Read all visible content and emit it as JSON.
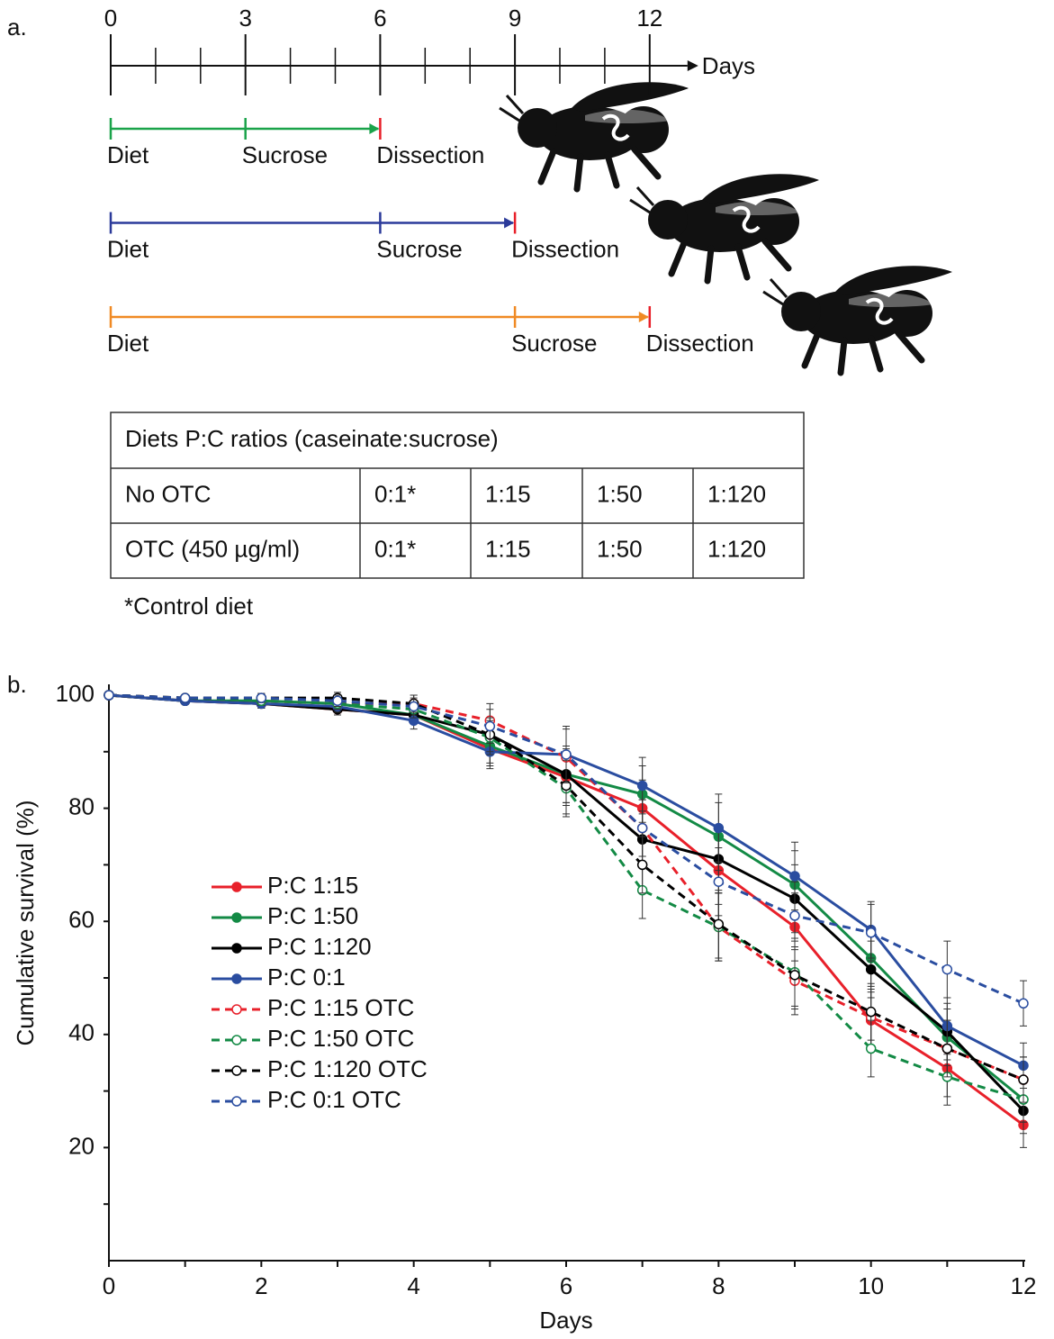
{
  "panel_a": {
    "label": "a.",
    "timeline": {
      "labeled_ticks": [
        0,
        3,
        6,
        9,
        12
      ],
      "minor_ticks": [
        1,
        2,
        4,
        5,
        7,
        8,
        10,
        11
      ],
      "axis_label": "Days",
      "rows": [
        {
          "color": "#1aa34a",
          "events": [
            {
              "day": 0,
              "label": "Diet"
            },
            {
              "day": 3,
              "label": "Sucrose"
            },
            {
              "day": 6,
              "label": "Dissection"
            }
          ]
        },
        {
          "color": "#2b3a9a",
          "events": [
            {
              "day": 0,
              "label": "Diet"
            },
            {
              "day": 6,
              "label": "Sucrose"
            },
            {
              "day": 9,
              "label": "Dissection"
            }
          ]
        },
        {
          "color": "#f08a24",
          "events": [
            {
              "day": 0,
              "label": "Diet"
            },
            {
              "day": 9,
              "label": "Sucrose"
            },
            {
              "day": 12,
              "label": "Dissection"
            }
          ]
        }
      ],
      "end_color": "#e8202a"
    },
    "table": {
      "header": "Diets P:C ratios (caseinate:sucrose)",
      "rows": [
        [
          "No OTC",
          "0:1*",
          "1:15",
          "1:50",
          "1:120"
        ],
        [
          "OTC (450 µg/ml)",
          "0:1*",
          "1:15",
          "1:50",
          "1:120"
        ]
      ],
      "footnote": "*Control diet"
    }
  },
  "panel_b_label": "b.",
  "chart_data": {
    "type": "line",
    "x_label": "Days",
    "y_label": "Cumulative survival (%)",
    "x": [
      0,
      1,
      2,
      3,
      4,
      5,
      6,
      7,
      8,
      9,
      10,
      11,
      12
    ],
    "xlim": [
      0,
      12
    ],
    "xticks": [
      0,
      2,
      4,
      6,
      8,
      10,
      12
    ],
    "x_minor_ticks": [
      1,
      3,
      5,
      7,
      9,
      11
    ],
    "ylim": [
      0,
      100
    ],
    "yticks": [
      20,
      40,
      60,
      80,
      100
    ],
    "y_minor_ticks": [
      10,
      30,
      50,
      70,
      90
    ],
    "legend_position": "left",
    "series": [
      {
        "name": "P:C 1:15",
        "color": "#e8202a",
        "dashed": false,
        "marker": "filled",
        "values": [
          100,
          99,
          98.5,
          97.5,
          96.5,
          90.5,
          85.5,
          80,
          69,
          59,
          42.5,
          34,
          24
        ],
        "errors": [
          0,
          0.5,
          0.8,
          1,
          1.5,
          3,
          5,
          5,
          6,
          6,
          5,
          5,
          4
        ]
      },
      {
        "name": "P:C 1:50",
        "color": "#138a45",
        "dashed": false,
        "marker": "filled",
        "values": [
          100,
          99,
          99,
          98.5,
          96.5,
          91,
          86,
          82.5,
          75,
          66.5,
          53.5,
          39.5,
          28.5
        ],
        "errors": [
          0,
          0.5,
          0.8,
          1,
          1.5,
          3,
          5,
          5,
          6,
          6,
          5,
          5,
          4
        ]
      },
      {
        "name": "P:C 1:120",
        "color": "#000000",
        "dashed": false,
        "marker": "filled",
        "values": [
          100,
          99,
          98.5,
          97.5,
          96.5,
          93,
          86,
          74.5,
          71,
          64,
          51.5,
          40.5,
          26.5
        ],
        "errors": [
          0,
          0.5,
          0.8,
          1,
          1.5,
          3,
          5,
          5,
          6,
          6,
          5,
          5,
          4
        ]
      },
      {
        "name": "P:C 0:1",
        "color": "#2a4da0",
        "dashed": false,
        "marker": "filled",
        "values": [
          100,
          99,
          98.5,
          98,
          95.5,
          90,
          89.5,
          84,
          76.5,
          68,
          58.5,
          41.5,
          34.5
        ],
        "errors": [
          0,
          0.5,
          0.8,
          1,
          1.5,
          3,
          5,
          5,
          6,
          6,
          5,
          5,
          4
        ]
      },
      {
        "name": "P:C 1:15 OTC",
        "color": "#e8202a",
        "dashed": true,
        "marker": "open",
        "values": [
          100,
          99.5,
          99,
          98.5,
          98.5,
          95.5,
          89,
          76.5,
          59,
          49.5,
          43,
          37.5,
          32
        ],
        "errors": [
          0,
          0.5,
          0.8,
          1,
          1.5,
          3,
          5,
          5,
          6,
          6,
          5,
          5,
          4
        ]
      },
      {
        "name": "P:C 1:50 OTC",
        "color": "#138a45",
        "dashed": true,
        "marker": "open",
        "values": [
          100,
          99.5,
          99,
          98.5,
          97.5,
          92.5,
          83.5,
          65.5,
          59,
          51,
          37.5,
          32.5,
          28.5
        ],
        "errors": [
          0,
          0.5,
          0.8,
          1,
          1.5,
          3,
          5,
          5,
          6,
          6,
          5,
          5,
          4
        ]
      },
      {
        "name": "P:C 1:120 OTC",
        "color": "#000000",
        "dashed": true,
        "marker": "open",
        "values": [
          100,
          99.5,
          99.5,
          99.5,
          98.5,
          93,
          84,
          70,
          59.5,
          50.5,
          44,
          37.5,
          32
        ],
        "errors": [
          0,
          0.5,
          0.8,
          1,
          1.5,
          3,
          5,
          5,
          6,
          6,
          5,
          5,
          4
        ]
      },
      {
        "name": "P:C 0:1 OTC",
        "color": "#2a4da0",
        "dashed": true,
        "marker": "open",
        "values": [
          100,
          99.5,
          99.5,
          99,
          98,
          94.5,
          89.5,
          76.5,
          67,
          61,
          58,
          51.5,
          45.5
        ],
        "errors": [
          0,
          0.5,
          0.8,
          1,
          1.5,
          3,
          5,
          5,
          6,
          6,
          5,
          5,
          4
        ]
      }
    ]
  }
}
